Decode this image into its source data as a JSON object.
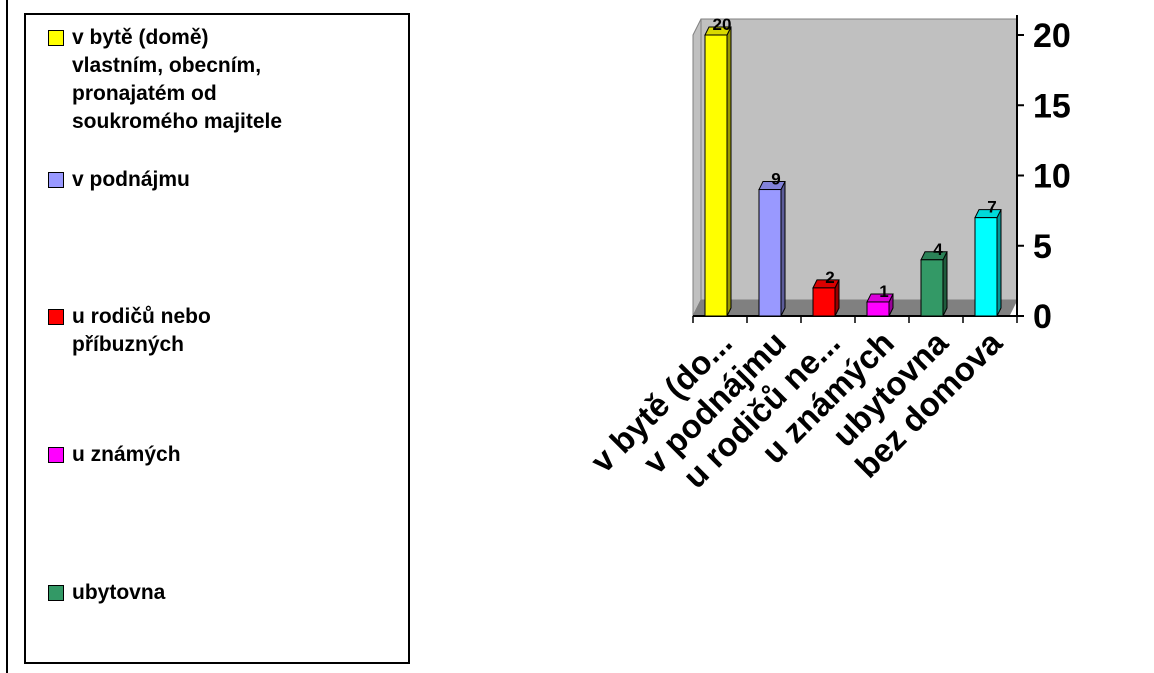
{
  "legend": {
    "items": [
      {
        "label": "v bytě (domě)\nvlastním, obecním,\npronajatém od\nsoukromého majitele",
        "color": "#ffff00"
      },
      {
        "label": "v podnájmu",
        "color": "#9999ff"
      },
      {
        "label": "u rodičů nebo\npříbuzných",
        "color": "#ff0000"
      },
      {
        "label": "u známých",
        "color": "#ff00ff"
      },
      {
        "label": "ubytovna",
        "color": "#339966"
      }
    ]
  },
  "chart_data": {
    "type": "bar",
    "categories": [
      "v bytě (do...",
      "v podnájmu",
      "u rodičů ne...",
      "u známých",
      "ubytovna",
      "bez domova"
    ],
    "values": [
      20,
      9,
      2,
      1,
      4,
      7
    ],
    "colors": [
      "#ffff00",
      "#9999ff",
      "#ff0000",
      "#ff00ff",
      "#339966",
      "#00ffff"
    ],
    "data_labels": [
      "20",
      "9",
      "2",
      "1",
      "4",
      "7"
    ],
    "yticks": [
      0,
      5,
      10,
      15,
      20
    ],
    "ylim": [
      0,
      20
    ],
    "y_axis_side": "right",
    "wall_color": "#c0c0c0",
    "floor_color": "#808080",
    "style": "3d-column"
  }
}
